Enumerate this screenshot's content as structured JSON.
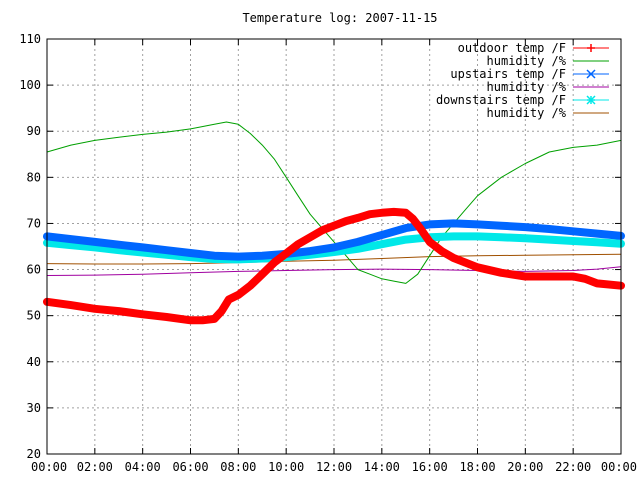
{
  "chart_data": {
    "type": "line",
    "title": "Temperature log: 2007-11-15",
    "xlabel": "",
    "ylabel": "",
    "ylim": [
      20,
      110
    ],
    "yticks": [
      20,
      30,
      40,
      50,
      60,
      70,
      80,
      90,
      100,
      110
    ],
    "xlim": [
      0,
      24
    ],
    "xticks": [
      "00:00",
      "02:00",
      "04:00",
      "06:00",
      "08:00",
      "10:00",
      "12:00",
      "14:00",
      "16:00",
      "18:00",
      "20:00",
      "22:00",
      "00:00"
    ],
    "grid": true,
    "legend_position": "top-right",
    "series": [
      {
        "name": "outdoor temp /F",
        "color": "#ff0000",
        "marker": "plus",
        "style": "thick",
        "x": [
          0,
          1,
          2,
          3,
          4,
          5,
          6,
          6.5,
          7,
          7.3,
          7.6,
          8,
          8.5,
          9,
          9.5,
          10,
          10.5,
          11,
          11.5,
          12,
          12.5,
          13,
          13.5,
          14,
          14.5,
          15,
          15.3,
          15.6,
          16,
          16.5,
          17,
          17.5,
          18,
          19,
          20,
          21,
          22,
          22.5,
          23,
          24
        ],
        "y": [
          53,
          52.3,
          51.5,
          51,
          50.3,
          49.7,
          49,
          49,
          49.3,
          51,
          53.5,
          54.5,
          56.5,
          59,
          61.5,
          63.5,
          65.5,
          67,
          68.5,
          69.5,
          70.5,
          71.2,
          72,
          72.3,
          72.5,
          72.3,
          71,
          69,
          66,
          64,
          62.5,
          61.5,
          60.5,
          59.3,
          58.5,
          58.5,
          58.5,
          58,
          57,
          56.5
        ]
      },
      {
        "name": "humidity /%",
        "color": "#00a000",
        "marker": "none",
        "style": "thin",
        "x": [
          0,
          1,
          2,
          3,
          4,
          5,
          6,
          7,
          7.5,
          8,
          8.5,
          9,
          9.5,
          10,
          10.5,
          11,
          11.5,
          12,
          12.5,
          13,
          13.5,
          14,
          14.5,
          15,
          15.5,
          16,
          16.5,
          17,
          17.5,
          18,
          19,
          20,
          21,
          22,
          23,
          24
        ],
        "y": [
          85.5,
          87,
          88,
          88.7,
          89.3,
          89.8,
          90.5,
          91.5,
          92,
          91.5,
          89.5,
          87,
          84,
          80,
          76,
          72,
          69,
          66,
          63,
          60,
          59,
          58,
          57.5,
          57,
          59,
          63,
          67,
          70,
          73,
          76,
          80,
          83,
          85.5,
          86.5,
          87,
          88
        ]
      },
      {
        "name": "upstairs temp /F",
        "color": "#0066ff",
        "marker": "cross",
        "style": "thick",
        "x": [
          0,
          1,
          2,
          3,
          4,
          5,
          6,
          7,
          8,
          9,
          10,
          11,
          12,
          13,
          14,
          15,
          16,
          17,
          18,
          19,
          20,
          21,
          22,
          23,
          24
        ],
        "y": [
          67.2,
          66.6,
          66,
          65.4,
          64.8,
          64.2,
          63.6,
          63,
          62.8,
          63,
          63.4,
          64,
          64.8,
          66,
          67.5,
          69,
          69.8,
          70,
          69.8,
          69.5,
          69.2,
          68.8,
          68.3,
          67.8,
          67.3
        ]
      },
      {
        "name": "humidity /%",
        "color": "#a000a0",
        "marker": "none",
        "style": "thin",
        "x": [
          0,
          2,
          4,
          6,
          8,
          10,
          12,
          14,
          16,
          18,
          20,
          22,
          23,
          24
        ],
        "y": [
          58.7,
          58.8,
          59,
          59.3,
          59.6,
          59.8,
          60,
          60.1,
          60,
          59.8,
          59.6,
          59.8,
          60.1,
          60.6
        ]
      },
      {
        "name": "downstairs temp /F",
        "color": "#00e8e8",
        "marker": "star",
        "style": "thick",
        "x": [
          0,
          1,
          2,
          3,
          4,
          5,
          6,
          7,
          8,
          9,
          10,
          11,
          12,
          13,
          14,
          15,
          16,
          17,
          18,
          19,
          20,
          21,
          22,
          23,
          24
        ],
        "y": [
          65.8,
          65.3,
          64.8,
          64.2,
          63.7,
          63.2,
          62.7,
          62.3,
          62.2,
          62.4,
          62.7,
          63.2,
          63.8,
          64.5,
          65.5,
          66.5,
          67,
          67.2,
          67.2,
          67,
          66.8,
          66.5,
          66.2,
          65.9,
          65.6
        ]
      },
      {
        "name": "humidity /%",
        "color": "#a05000",
        "marker": "none",
        "style": "thin",
        "x": [
          0,
          2,
          4,
          6,
          8,
          10,
          12,
          14,
          16,
          18,
          20,
          22,
          24
        ],
        "y": [
          61.3,
          61.2,
          61.2,
          61.3,
          61.5,
          61.8,
          62,
          62.4,
          62.8,
          63,
          63.1,
          63.2,
          63.3
        ]
      }
    ]
  }
}
